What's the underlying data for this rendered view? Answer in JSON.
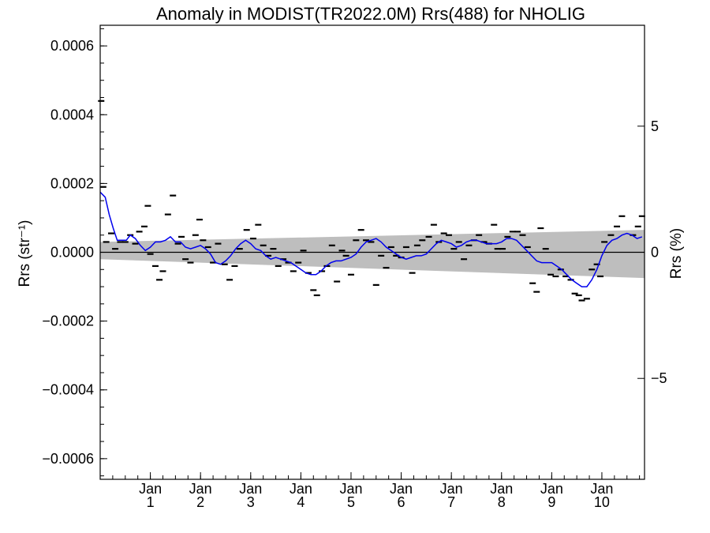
{
  "chart_data": {
    "type": "scatter",
    "title": "Anomaly in MODIST(TR2022.0M) Rrs(488) for NHOLIG",
    "ylabel": "Rrs (str⁻¹)",
    "ylabel_right": "Rrs (%)",
    "xlabel": "",
    "xlim": [
      0.0,
      10.85
    ],
    "ylim": [
      -0.00066,
      0.00066
    ],
    "y2lim": [
      -9.0,
      9.0
    ],
    "grid": false,
    "x_tick_labels": [
      {
        "x": 1,
        "top": "Jan",
        "bottom": "1"
      },
      {
        "x": 2,
        "top": "Jan",
        "bottom": "2"
      },
      {
        "x": 3,
        "top": "Jan",
        "bottom": "3"
      },
      {
        "x": 4,
        "top": "Jan",
        "bottom": "4"
      },
      {
        "x": 5,
        "top": "Jan",
        "bottom": "5"
      },
      {
        "x": 6,
        "top": "Jan",
        "bottom": "6"
      },
      {
        "x": 7,
        "top": "Jan",
        "bottom": "7"
      },
      {
        "x": 8,
        "top": "Jan",
        "bottom": "8"
      },
      {
        "x": 9,
        "top": "Jan",
        "bottom": "9"
      },
      {
        "x": 10,
        "top": "Jan",
        "bottom": "10"
      }
    ],
    "y_ticks": [
      {
        "value": 0.0006,
        "label": "0.0006"
      },
      {
        "value": 0.0004,
        "label": "0.0004"
      },
      {
        "value": 0.0002,
        "label": "0.0002"
      },
      {
        "value": 0.0,
        "label": "0.0000"
      },
      {
        "value": -0.0002,
        "label": "−0.0002"
      },
      {
        "value": -0.0004,
        "label": "−0.0004"
      },
      {
        "value": -0.0006,
        "label": "−0.0006"
      }
    ],
    "y2_ticks": [
      {
        "value": 5,
        "label": "5"
      },
      {
        "value": 0,
        "label": "0"
      },
      {
        "value": -5,
        "label": "−5"
      }
    ],
    "colors": {
      "smooth_line": "#0000ee",
      "band": "#bebebe",
      "points": "#000000",
      "zero_line": "#000000"
    },
    "uncertainty_band": {
      "x": [
        0.0,
        10.85
      ],
      "upper": [
        3e-05,
        6.5e-05
      ],
      "lower": [
        -2e-05,
        -7.5e-05
      ]
    },
    "series": [
      {
        "points": [
          [
            0.02,
            0.00044
          ],
          [
            0.06,
            0.00019
          ],
          [
            0.12,
            3e-05
          ],
          [
            0.22,
            5.5e-05
          ],
          [
            0.3,
            1e-05
          ],
          [
            0.4,
            3e-05
          ],
          [
            0.5,
            3e-05
          ],
          [
            0.6,
            5e-05
          ],
          [
            0.7,
            2.5e-05
          ],
          [
            0.78,
            6e-05
          ],
          [
            0.88,
            7.5e-05
          ],
          [
            0.95,
            0.000135
          ],
          [
            1.0,
            -5e-06
          ],
          [
            1.1,
            -4e-05
          ],
          [
            1.18,
            -8e-05
          ],
          [
            1.25,
            -5.5e-05
          ],
          [
            1.35,
            0.00011
          ],
          [
            1.45,
            0.000165
          ],
          [
            1.55,
            2.5e-05
          ],
          [
            1.62,
            4.5e-05
          ],
          [
            1.7,
            -2e-05
          ],
          [
            1.8,
            -3e-05
          ],
          [
            1.9,
            5e-05
          ],
          [
            1.98,
            9.5e-05
          ],
          [
            2.05,
            3.5e-05
          ],
          [
            2.15,
            1.5e-05
          ],
          [
            2.25,
            -3e-05
          ],
          [
            2.35,
            2.5e-05
          ],
          [
            2.48,
            -3.5e-05
          ],
          [
            2.58,
            -8e-05
          ],
          [
            2.68,
            -4e-05
          ],
          [
            2.78,
            1e-05
          ],
          [
            2.92,
            6.5e-05
          ],
          [
            3.05,
            4e-05
          ],
          [
            3.15,
            8e-05
          ],
          [
            3.25,
            2e-05
          ],
          [
            3.35,
            -1e-05
          ],
          [
            3.45,
            1e-05
          ],
          [
            3.55,
            -4e-05
          ],
          [
            3.65,
            -2e-05
          ],
          [
            3.75,
            -3e-05
          ],
          [
            3.85,
            -5.5e-05
          ],
          [
            3.95,
            -3e-05
          ],
          [
            4.05,
            5e-06
          ],
          [
            4.15,
            -6e-05
          ],
          [
            4.25,
            -0.00011
          ],
          [
            4.32,
            -0.000125
          ],
          [
            4.42,
            -5.5e-05
          ],
          [
            4.52,
            -4e-05
          ],
          [
            4.62,
            2e-05
          ],
          [
            4.72,
            -8.5e-05
          ],
          [
            4.82,
            5e-06
          ],
          [
            4.9,
            -1e-05
          ],
          [
            5.0,
            -6.5e-05
          ],
          [
            5.1,
            3.5e-05
          ],
          [
            5.2,
            6.5e-05
          ],
          [
            5.3,
            3.5e-05
          ],
          [
            5.4,
            3e-05
          ],
          [
            5.5,
            -9.5e-05
          ],
          [
            5.6,
            -1e-05
          ],
          [
            5.7,
            -4.5e-05
          ],
          [
            5.8,
            1.5e-05
          ],
          [
            5.9,
            -1e-05
          ],
          [
            6.0,
            -1.5e-05
          ],
          [
            6.1,
            1.5e-05
          ],
          [
            6.22,
            -6e-05
          ],
          [
            6.32,
            2e-05
          ],
          [
            6.42,
            3.5e-05
          ],
          [
            6.55,
            4.5e-05
          ],
          [
            6.65,
            8e-05
          ],
          [
            6.75,
            3e-05
          ],
          [
            6.85,
            5.5e-05
          ],
          [
            6.95,
            5e-05
          ],
          [
            7.05,
            1e-05
          ],
          [
            7.15,
            3e-05
          ],
          [
            7.25,
            -2e-05
          ],
          [
            7.35,
            2e-05
          ],
          [
            7.45,
            3.5e-05
          ],
          [
            7.55,
            5e-05
          ],
          [
            7.65,
            3e-05
          ],
          [
            7.75,
            2.5e-05
          ],
          [
            7.85,
            8e-05
          ],
          [
            7.92,
            1e-05
          ],
          [
            8.02,
            1e-05
          ],
          [
            8.12,
            4.5e-05
          ],
          [
            8.22,
            6e-05
          ],
          [
            8.32,
            6e-05
          ],
          [
            8.42,
            5e-05
          ],
          [
            8.52,
            1.5e-05
          ],
          [
            8.62,
            -9e-05
          ],
          [
            8.7,
            -0.000115
          ],
          [
            8.78,
            7e-05
          ],
          [
            8.88,
            1e-05
          ],
          [
            8.98,
            -6.5e-05
          ],
          [
            9.08,
            -7e-05
          ],
          [
            9.18,
            -5e-05
          ],
          [
            9.28,
            -7e-05
          ],
          [
            9.38,
            -8e-05
          ],
          [
            9.46,
            -0.00012
          ],
          [
            9.54,
            -0.000125
          ],
          [
            9.6,
            -0.00014
          ],
          [
            9.7,
            -0.000135
          ],
          [
            9.8,
            -5e-05
          ],
          [
            9.9,
            -3.5e-05
          ],
          [
            9.97,
            -7e-05
          ],
          [
            10.05,
            3e-05
          ],
          [
            10.18,
            5e-05
          ],
          [
            10.3,
            7.5e-05
          ],
          [
            10.4,
            0.000105
          ],
          [
            10.62,
            5e-05
          ],
          [
            10.72,
            7.5e-05
          ],
          [
            10.8,
            0.000105
          ]
        ]
      },
      {
        "line": [
          [
            0.0,
            0.000175
          ],
          [
            0.1,
            0.00016
          ],
          [
            0.18,
            0.00011
          ],
          [
            0.26,
            7e-05
          ],
          [
            0.34,
            3.5e-05
          ],
          [
            0.44,
            3.5e-05
          ],
          [
            0.52,
            3.5e-05
          ],
          [
            0.6,
            5e-05
          ],
          [
            0.7,
            4e-05
          ],
          [
            0.8,
            2e-05
          ],
          [
            0.9,
            5e-06
          ],
          [
            1.0,
            1.5e-05
          ],
          [
            1.1,
            3e-05
          ],
          [
            1.2,
            3e-05
          ],
          [
            1.3,
            3.5e-05
          ],
          [
            1.4,
            4.5e-05
          ],
          [
            1.5,
            3e-05
          ],
          [
            1.6,
            3e-05
          ],
          [
            1.7,
            1.5e-05
          ],
          [
            1.8,
            1e-05
          ],
          [
            1.9,
            1.5e-05
          ],
          [
            2.0,
            2e-05
          ],
          [
            2.1,
            1e-05
          ],
          [
            2.2,
            -5e-06
          ],
          [
            2.3,
            -3e-05
          ],
          [
            2.4,
            -3.5e-05
          ],
          [
            2.5,
            -2.5e-05
          ],
          [
            2.6,
            -1e-05
          ],
          [
            2.7,
            1e-05
          ],
          [
            2.8,
            2.5e-05
          ],
          [
            2.9,
            3.5e-05
          ],
          [
            3.0,
            2.5e-05
          ],
          [
            3.1,
            1e-05
          ],
          [
            3.2,
            5e-06
          ],
          [
            3.3,
            -1e-05
          ],
          [
            3.4,
            -2e-05
          ],
          [
            3.5,
            -1.5e-05
          ],
          [
            3.6,
            -2e-05
          ],
          [
            3.7,
            -2.5e-05
          ],
          [
            3.8,
            -3e-05
          ],
          [
            3.9,
            -4e-05
          ],
          [
            4.0,
            -5e-05
          ],
          [
            4.1,
            -6e-05
          ],
          [
            4.2,
            -6.5e-05
          ],
          [
            4.3,
            -6.5e-05
          ],
          [
            4.4,
            -5.5e-05
          ],
          [
            4.5,
            -4e-05
          ],
          [
            4.6,
            -3e-05
          ],
          [
            4.7,
            -2.5e-05
          ],
          [
            4.8,
            -2.5e-05
          ],
          [
            4.9,
            -2e-05
          ],
          [
            5.0,
            -1.5e-05
          ],
          [
            5.1,
            -5e-06
          ],
          [
            5.2,
            1.5e-05
          ],
          [
            5.3,
            3e-05
          ],
          [
            5.4,
            3.5e-05
          ],
          [
            5.5,
            4e-05
          ],
          [
            5.6,
            3e-05
          ],
          [
            5.7,
            1.5e-05
          ],
          [
            5.8,
            5e-06
          ],
          [
            5.9,
            -5e-06
          ],
          [
            6.0,
            -1.5e-05
          ],
          [
            6.1,
            -2e-05
          ],
          [
            6.2,
            -1.5e-05
          ],
          [
            6.3,
            -1e-05
          ],
          [
            6.4,
            -1e-05
          ],
          [
            6.5,
            -5e-06
          ],
          [
            6.6,
            1e-05
          ],
          [
            6.7,
            2.5e-05
          ],
          [
            6.8,
            3.5e-05
          ],
          [
            6.9,
            3e-05
          ],
          [
            7.0,
            2.5e-05
          ],
          [
            7.1,
            1.5e-05
          ],
          [
            7.2,
            2e-05
          ],
          [
            7.3,
            3e-05
          ],
          [
            7.4,
            3.5e-05
          ],
          [
            7.5,
            3.5e-05
          ],
          [
            7.6,
            3e-05
          ],
          [
            7.7,
            2.5e-05
          ],
          [
            7.8,
            2.5e-05
          ],
          [
            7.9,
            2.5e-05
          ],
          [
            8.0,
            3e-05
          ],
          [
            8.1,
            4e-05
          ],
          [
            8.2,
            4e-05
          ],
          [
            8.3,
            3.5e-05
          ],
          [
            8.4,
            2e-05
          ],
          [
            8.5,
            5e-06
          ],
          [
            8.6,
            -1e-05
          ],
          [
            8.7,
            -2.5e-05
          ],
          [
            8.8,
            -3e-05
          ],
          [
            8.9,
            -3e-05
          ],
          [
            9.0,
            -3e-05
          ],
          [
            9.1,
            -4e-05
          ],
          [
            9.2,
            -5e-05
          ],
          [
            9.3,
            -6.5e-05
          ],
          [
            9.4,
            -8e-05
          ],
          [
            9.5,
            -9e-05
          ],
          [
            9.6,
            -0.0001
          ],
          [
            9.7,
            -0.0001
          ],
          [
            9.8,
            -8e-05
          ],
          [
            9.9,
            -5e-05
          ],
          [
            10.0,
            -1e-05
          ],
          [
            10.1,
            2e-05
          ],
          [
            10.2,
            3.5e-05
          ],
          [
            10.3,
            4e-05
          ],
          [
            10.4,
            5e-05
          ],
          [
            10.5,
            5.5e-05
          ],
          [
            10.6,
            5e-05
          ],
          [
            10.7,
            4e-05
          ],
          [
            10.8,
            4.5e-05
          ]
        ]
      }
    ]
  }
}
